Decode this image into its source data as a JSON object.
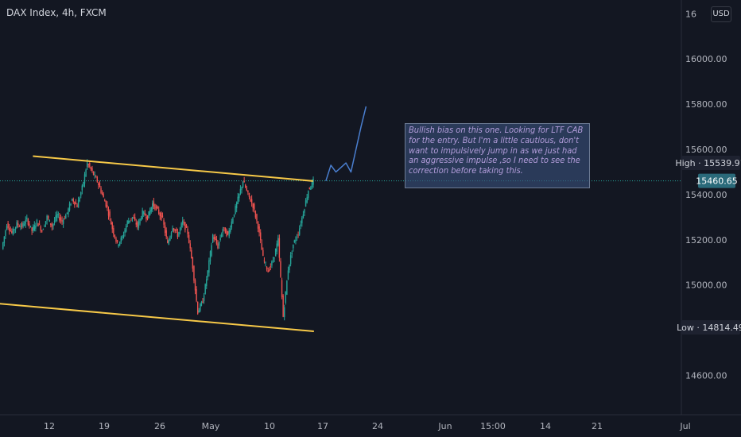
{
  "header": {
    "title": "DAX Index, 4h, FXCM",
    "currency": "USD"
  },
  "note": {
    "text": "Bullish bias on this one. Looking for LTF CAB for the entry. But I'm a little cautious, don't want to impulsively jump in as we just had an aggressive impulse ,so I need to see the correction before taking this."
  },
  "price_axis": {
    "ticks": [
      "16200.00",
      "16000.00",
      "15800.00",
      "15600.00",
      "15400.00",
      "15200.00",
      "15000.00",
      "14800.00",
      "14600.00"
    ],
    "tick_top_clipped": "16",
    "high_label": "High",
    "high_value": "15539.91",
    "current_value": "15460.65",
    "low_label": "Low",
    "low_value": "14814.49"
  },
  "time_axis": {
    "ticks": [
      "12",
      "19",
      "26",
      "May",
      "10",
      "17",
      "24",
      "Jun",
      "15:00",
      "14",
      "21",
      "Jul"
    ]
  },
  "chart_data": {
    "type": "candlestick",
    "symbol": "DAX Index",
    "timeframe": "4h",
    "source": "FXCM",
    "ylim": [
      14430,
      16250
    ],
    "y_ticks": [
      14600,
      14800,
      15000,
      15200,
      15400,
      15600,
      15800,
      16000,
      16200
    ],
    "x_ticks": [
      "12",
      "19",
      "26",
      "May",
      "10",
      "17",
      "24",
      "Jun",
      "15:00",
      "14",
      "21",
      "Jul"
    ],
    "high": 15539.91,
    "low": 14814.49,
    "last": 15460.65,
    "path_points": [
      [
        0,
        15160
      ],
      [
        1,
        15270
      ],
      [
        2,
        15230
      ],
      [
        3,
        15270
      ],
      [
        4,
        15260
      ],
      [
        5,
        15290
      ],
      [
        6,
        15240
      ],
      [
        7,
        15280
      ],
      [
        8,
        15240
      ],
      [
        9,
        15300
      ],
      [
        10,
        15260
      ],
      [
        11,
        15310
      ],
      [
        12,
        15280
      ],
      [
        13,
        15320
      ],
      [
        14,
        15380
      ],
      [
        15,
        15350
      ],
      [
        16,
        15430
      ],
      [
        17,
        15540
      ],
      [
        18,
        15500
      ],
      [
        19,
        15460
      ],
      [
        20,
        15400
      ],
      [
        21,
        15340
      ],
      [
        22,
        15250
      ],
      [
        23,
        15180
      ],
      [
        24,
        15210
      ],
      [
        25,
        15280
      ],
      [
        26,
        15300
      ],
      [
        27,
        15260
      ],
      [
        28,
        15320
      ],
      [
        29,
        15300
      ],
      [
        30,
        15360
      ],
      [
        31,
        15330
      ],
      [
        32,
        15290
      ],
      [
        33,
        15180
      ],
      [
        34,
        15260
      ],
      [
        35,
        15220
      ],
      [
        36,
        15280
      ],
      [
        37,
        15230
      ],
      [
        38,
        15080
      ],
      [
        39,
        14880
      ],
      [
        40,
        14930
      ],
      [
        41,
        15060
      ],
      [
        42,
        15220
      ],
      [
        43,
        15170
      ],
      [
        44,
        15250
      ],
      [
        45,
        15220
      ],
      [
        46,
        15300
      ],
      [
        47,
        15380
      ],
      [
        48,
        15460
      ],
      [
        49,
        15400
      ],
      [
        50,
        15350
      ],
      [
        51,
        15260
      ],
      [
        52,
        15120
      ],
      [
        53,
        15060
      ],
      [
        54,
        15110
      ],
      [
        55,
        15200
      ],
      [
        56,
        14860
      ],
      [
        57,
        15070
      ],
      [
        58,
        15180
      ],
      [
        59,
        15230
      ],
      [
        60,
        15320
      ],
      [
        61,
        15420
      ],
      [
        62,
        15460
      ]
    ],
    "projection": [
      [
        62,
        15460
      ],
      [
        63,
        15530
      ],
      [
        64,
        15500
      ],
      [
        65,
        15520
      ],
      [
        66,
        15540
      ],
      [
        67,
        15500
      ],
      [
        68,
        15600
      ],
      [
        69,
        15700
      ],
      [
        70,
        15790
      ]
    ],
    "trendlines": [
      {
        "name": "upper-channel",
        "color": "#f7c948",
        "points": [
          [
            20,
            15570
          ],
          [
            62,
            15460
          ]
        ]
      },
      {
        "name": "lower-channel",
        "color": "#f7c948",
        "points": [
          [
            -2,
            14920
          ],
          [
            62,
            14795
          ]
        ]
      }
    ],
    "colors": {
      "up": "#26a69a",
      "down": "#ef5350",
      "projection": "#4a7fd0",
      "channel": "#f7c948",
      "last_price_line": "#26a69a"
    }
  }
}
